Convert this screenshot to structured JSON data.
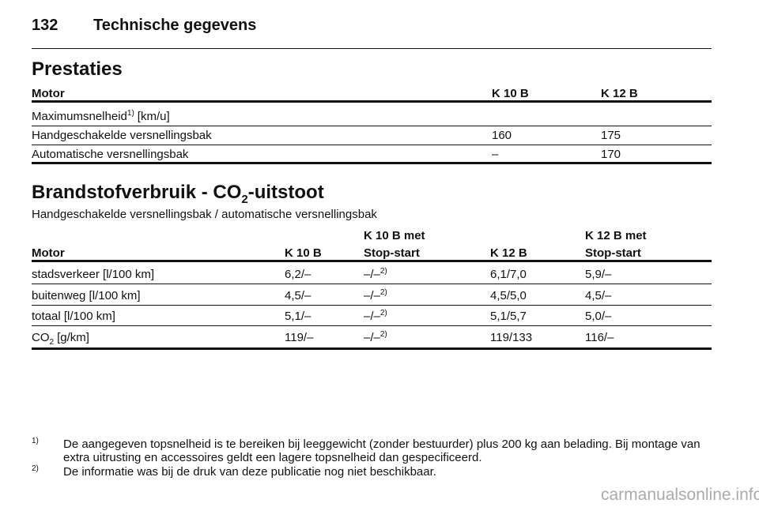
{
  "header": {
    "page_number": "132",
    "title": "Technische gegevens"
  },
  "performance": {
    "title": "Prestaties",
    "columns": [
      "Motor",
      "K 10 B",
      "K 12 B"
    ],
    "rows": [
      {
        "label": {
          "text": "Maximumsnelheid",
          "note": "1)",
          "unit": "[km/u]"
        }
      },
      {
        "label": "Handgeschakelde versnellingsbak",
        "values": [
          "160",
          "175"
        ]
      },
      {
        "label": "Automatische versnellingsbak",
        "values": [
          "–",
          "170"
        ]
      }
    ]
  },
  "consumption": {
    "title": "Brandstofverbruik - CO",
    "title_sub": "2",
    "title_end": "-uitstoot",
    "subtitle": "Handgeschakelde versnellingsbak / automatische versnellingsbak",
    "columns": [
      [
        "Motor"
      ],
      [
        "K 10 B"
      ],
      [
        "K 10 B met",
        "Stop-start"
      ],
      [
        "K 12 B"
      ],
      [
        "K 12 B met",
        "Stop-start"
      ]
    ],
    "rows": [
      {
        "label": "stadsverkeer [l/100 km]",
        "values": [
          "6,2/–",
          {
            "text": "–/–",
            "note": "2)"
          },
          "6,1/7,0",
          "5,9/–"
        ]
      },
      {
        "label": "buitenweg [l/100 km]",
        "values": [
          "4,5/–",
          {
            "text": "–/–",
            "note": "2)"
          },
          "4,5/5,0",
          "4,5/–"
        ]
      },
      {
        "label": "totaal [l/100 km]",
        "values": [
          "5,1/–",
          {
            "text": "–/–",
            "note": "2)"
          },
          "5,1/5,7",
          "5,0/–"
        ]
      },
      {
        "label": {
          "text": "CO",
          "sub": "2",
          "unit": "[g/km]"
        },
        "values": [
          "119/–",
          {
            "text": "–/–",
            "note": "2)"
          },
          "119/133",
          "116/–"
        ]
      }
    ]
  },
  "footnotes": [
    {
      "marker": "1)",
      "text": "De aangegeven topsnelheid is te bereiken bij leeggewicht (zonder bestuurder) plus 200 kg aan belading. Bij montage van extra uitrusting en accessoires geldt een lagere topsnelheid dan gespecificeerd."
    },
    {
      "marker": "2)",
      "text": "De informatie was bij de druk van deze publicatie nog niet beschikbaar."
    }
  ],
  "watermark": "carmanualsonline.info"
}
